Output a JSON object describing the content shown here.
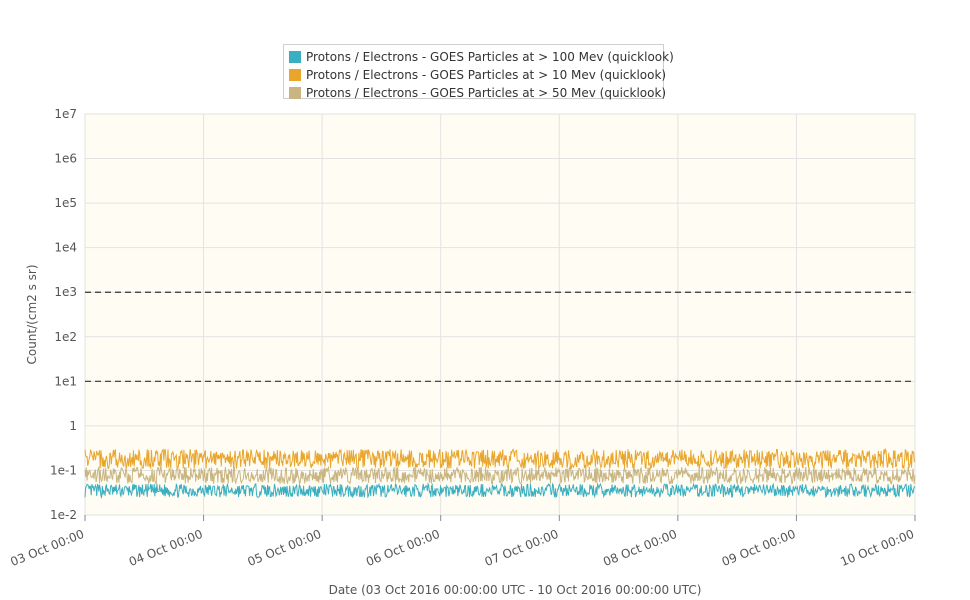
{
  "chart_data": {
    "type": "line",
    "title": "",
    "xlabel": "Date (03 Oct 2016 00:00:00 UTC - 10 Oct 2016 00:00:00 UTC)",
    "ylabel": "Count/(cm2 s sr)",
    "y_scale": "log",
    "ylim": [
      0.01,
      10000000
    ],
    "xlim": [
      "03 Oct 00:00",
      "10 Oct 00:00"
    ],
    "y_ticks": [
      "1e-2",
      "1e-1",
      "1",
      "1e1",
      "1e2",
      "1e3",
      "1e4",
      "1e5",
      "1e6",
      "1e7"
    ],
    "x_ticks": [
      "03 Oct 00:00",
      "04 Oct 00:00",
      "05 Oct 00:00",
      "06 Oct 00:00",
      "07 Oct 00:00",
      "08 Oct 00:00",
      "09 Oct 00:00",
      "10 Oct 00:00"
    ],
    "grid": true,
    "legend_position": "top-center",
    "plot_background": "#fffdf3",
    "threshold_lines": [
      {
        "value": 1000,
        "style": "dashed",
        "color": "#333333"
      },
      {
        "value": 10,
        "style": "dashed",
        "color": "#333333"
      }
    ],
    "series": [
      {
        "name": "Protons / Electrons - GOES Particles at > 100 Mev (quicklook)",
        "color": "#3aafc1",
        "typical_min": 0.025,
        "typical_max": 0.05
      },
      {
        "name": "Protons / Electrons - GOES Particles at > 10 Mev (quicklook)",
        "color": "#e9a52c",
        "typical_min": 0.11,
        "typical_max": 0.3
      },
      {
        "name": "Protons / Electrons - GOES Particles at > 50 Mev (quicklook)",
        "color": "#c9b582",
        "typical_min": 0.05,
        "typical_max": 0.12
      }
    ]
  }
}
